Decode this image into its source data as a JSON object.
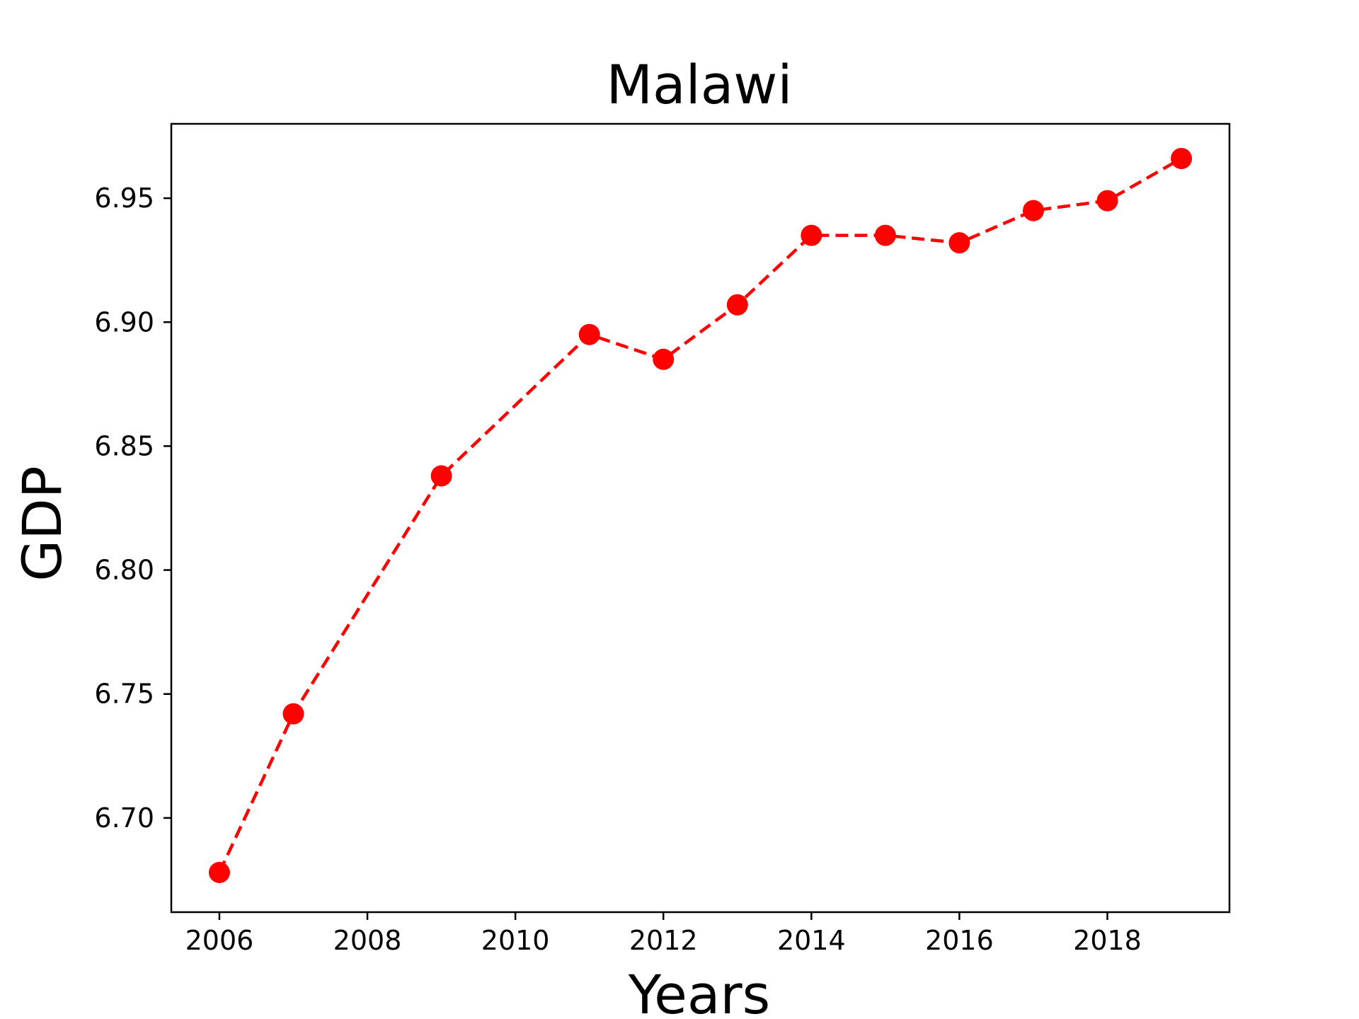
{
  "chart_data": {
    "type": "line",
    "title": "Malawi",
    "xlabel": "Years",
    "ylabel": "GDP",
    "xlim": [
      2005.35,
      2019.65
    ],
    "ylim": [
      6.662,
      6.98
    ],
    "x_ticks": [
      2006,
      2008,
      2010,
      2012,
      2014,
      2016,
      2018
    ],
    "x_tick_labels": [
      "2006",
      "2008",
      "2010",
      "2012",
      "2014",
      "2016",
      "2018"
    ],
    "y_ticks": [
      6.7,
      6.75,
      6.8,
      6.85,
      6.9,
      6.95
    ],
    "y_tick_labels": [
      "6.70",
      "6.75",
      "6.80",
      "6.85",
      "6.90",
      "6.95"
    ],
    "grid": false,
    "legend": false,
    "x": [
      2006,
      2007,
      2009,
      2011,
      2012,
      2013,
      2014,
      2015,
      2016,
      2017,
      2018,
      2019
    ],
    "series": [
      {
        "color": "#ff0000",
        "line_style": "dashed",
        "marker": "circle",
        "values": [
          6.678,
          6.742,
          6.838,
          6.895,
          6.885,
          6.907,
          6.935,
          6.935,
          6.932,
          6.945,
          6.949,
          6.966
        ]
      }
    ]
  }
}
